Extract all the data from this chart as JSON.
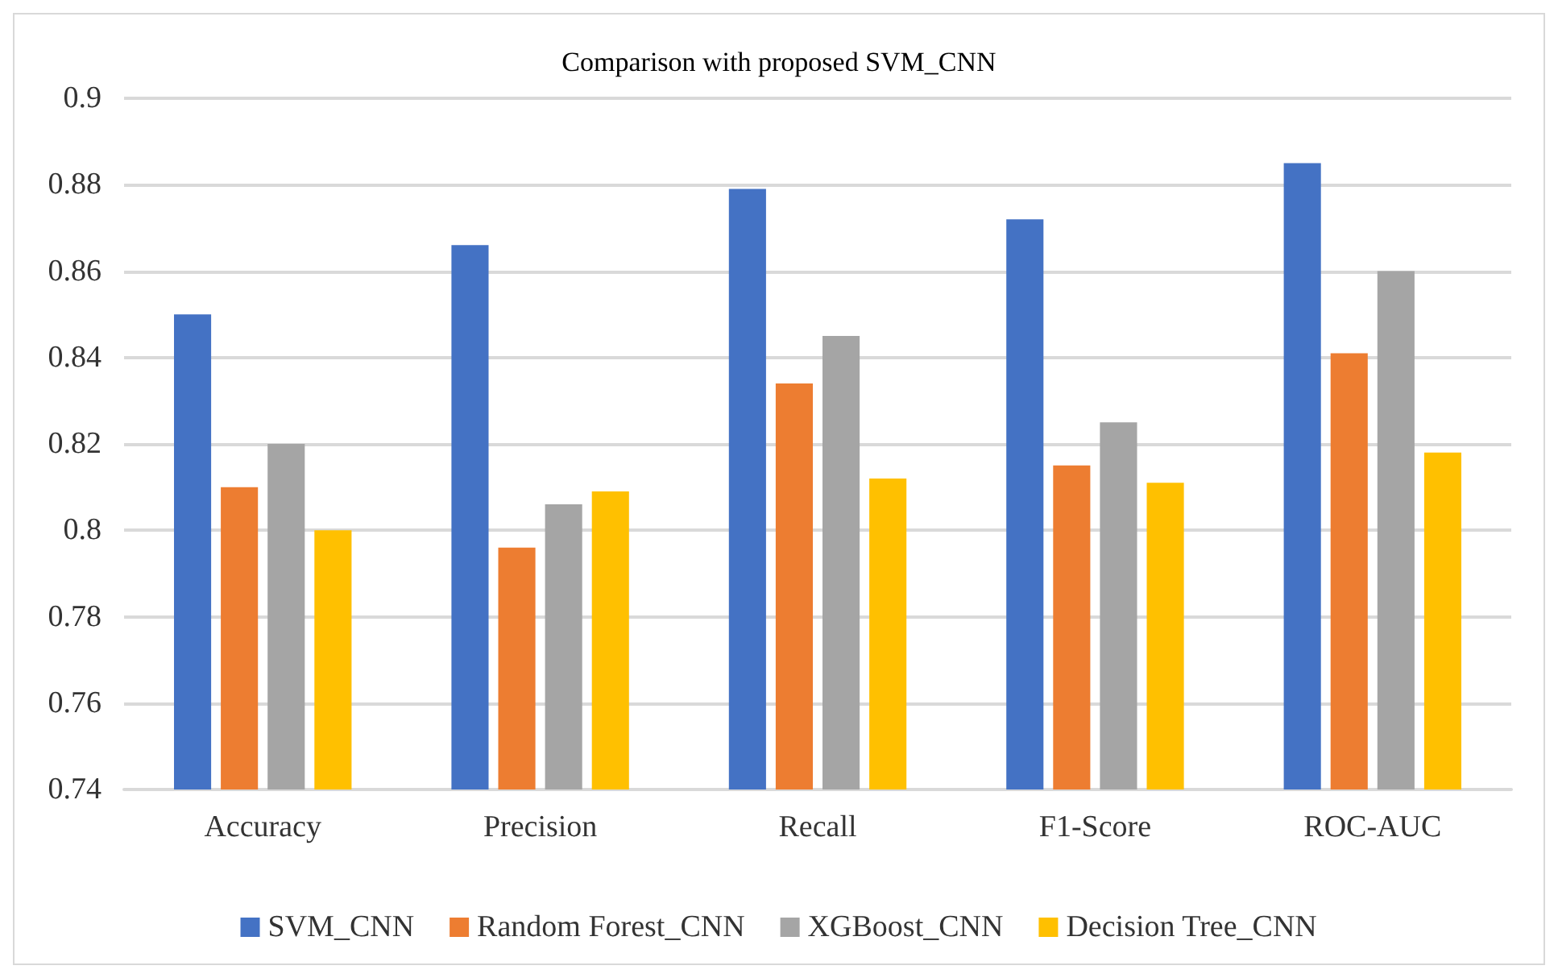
{
  "chart_data": {
    "type": "bar",
    "title": "Comparison with proposed SVM_CNN",
    "categories": [
      "Accuracy",
      "Precision",
      "Recall",
      "F1-Score",
      "ROC-AUC"
    ],
    "series": [
      {
        "name": "SVM_CNN",
        "color": "#4472c4",
        "values": [
          0.85,
          0.866,
          0.879,
          0.872,
          0.885
        ]
      },
      {
        "name": "Random Forest_CNN",
        "color": "#ed7d31",
        "values": [
          0.81,
          0.796,
          0.834,
          0.815,
          0.841
        ]
      },
      {
        "name": "XGBoost_CNN",
        "color": "#a5a5a5",
        "values": [
          0.82,
          0.806,
          0.845,
          0.825,
          0.86
        ]
      },
      {
        "name": "Decision Tree_CNN",
        "color": "#ffc000",
        "values": [
          0.8,
          0.809,
          0.812,
          0.811,
          0.818
        ]
      }
    ],
    "ylim": [
      0.74,
      0.9
    ],
    "yticks": [
      0.74,
      0.76,
      0.78,
      0.8,
      0.82,
      0.84,
      0.86,
      0.88,
      0.9
    ],
    "grid": "y",
    "legend": "bottom"
  }
}
